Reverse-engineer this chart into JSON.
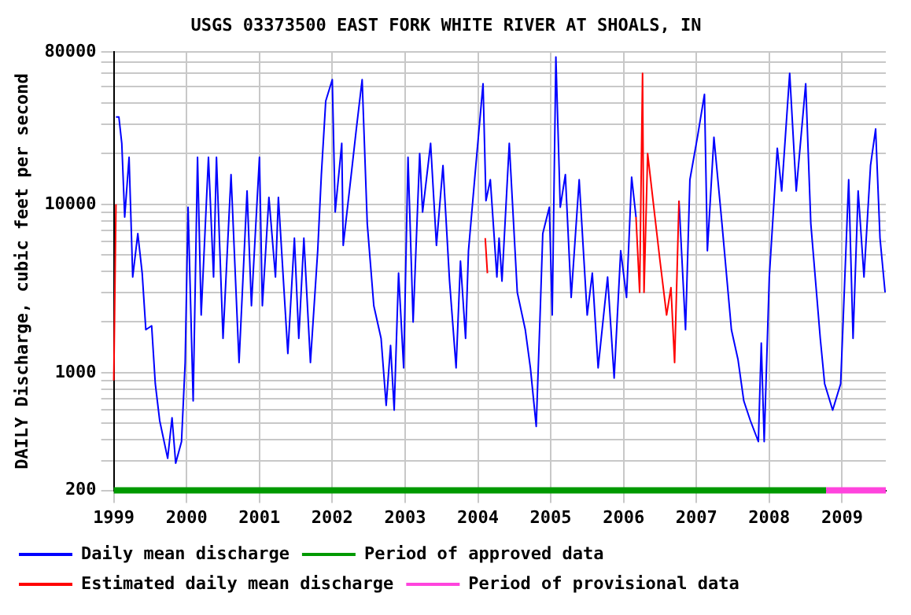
{
  "chart_data": {
    "type": "line",
    "title": "USGS 03373500 EAST FORK WHITE RIVER AT SHOALS, IN",
    "ylabel": "DAILY Discharge, cubic feet per second",
    "log": "y",
    "grid": true,
    "legend": "bottom",
    "line_style": "solid",
    "marker": "none",
    "xlim": [
      1999,
      2009.6
    ],
    "xticks": [
      1999,
      2000,
      2001,
      2002,
      2003,
      2004,
      2005,
      2006,
      2007,
      2008,
      2009
    ],
    "ylim": [
      200,
      80000
    ],
    "yticks": [
      200,
      {
        "value": 300,
        "label": null
      },
      {
        "value": 400,
        "label": null
      },
      {
        "value": 500,
        "label": null
      },
      {
        "value": 600,
        "label": null
      },
      {
        "value": 700,
        "label": null
      },
      {
        "value": 800,
        "label": null
      },
      {
        "value": 900,
        "label": null
      },
      1000,
      {
        "value": 2000,
        "label": null
      },
      {
        "value": 3000,
        "label": null
      },
      {
        "value": 4000,
        "label": null
      },
      {
        "value": 5000,
        "label": null
      },
      {
        "value": 6000,
        "label": null
      },
      {
        "value": 7000,
        "label": null
      },
      {
        "value": 8000,
        "label": null
      },
      {
        "value": 9000,
        "label": null
      },
      10000,
      {
        "value": 20000,
        "label": null
      },
      {
        "value": 30000,
        "label": null
      },
      {
        "value": 40000,
        "label": null
      },
      {
        "value": 50000,
        "label": null
      },
      {
        "value": 60000,
        "label": null
      },
      {
        "value": 70000,
        "label": null
      },
      80000
    ],
    "series": [
      {
        "name": "Daily mean discharge",
        "color": "#0000ff",
        "x": [
          1999.03,
          1999.07,
          1999.11,
          1999.15,
          1999.21,
          1999.26,
          1999.33,
          1999.39,
          1999.44,
          1999.52,
          1999.57,
          1999.63,
          1999.74,
          1999.8,
          1999.85,
          1999.93,
          1999.98,
          2000.02,
          2000.09,
          2000.15,
          2000.2,
          2000.3,
          2000.37,
          2000.41,
          2000.5,
          2000.61,
          2000.72,
          2000.83,
          2000.89,
          2001.0,
          2001.04,
          2001.13,
          2001.22,
          2001.26,
          2001.39,
          2001.48,
          2001.54,
          2001.61,
          2001.7,
          2001.8,
          2001.85,
          2001.91,
          2002.0,
          2002.04,
          2002.13,
          2002.15,
          2002.26,
          2002.33,
          2002.41,
          2002.48,
          2002.57,
          2002.67,
          2002.74,
          2002.8,
          2002.85,
          2002.91,
          2002.98,
          2003.04,
          2003.11,
          2003.2,
          2003.24,
          2003.35,
          2003.43,
          2003.52,
          2003.61,
          2003.7,
          2003.76,
          2003.83,
          2003.87,
          2003.96,
          2004.07,
          2004.11,
          2004.17,
          2004.26,
          2004.29,
          2004.33,
          2004.43,
          2004.54,
          2004.65,
          2004.72,
          2004.8,
          2004.85,
          2004.89,
          2004.98,
          2005.02,
          2005.07,
          2005.13,
          2005.2,
          2005.28,
          2005.39,
          2005.5,
          2005.57,
          2005.65,
          2005.78,
          2005.87,
          2005.96,
          2006.04,
          2006.11,
          2006.17,
          2006.5,
          2006.76,
          2006.85,
          2006.91,
          2007.02,
          2007.11,
          2007.15,
          2007.24,
          2007.35,
          2007.48,
          2007.57,
          2007.65,
          2007.74,
          2007.85,
          2007.89,
          2007.93,
          2008.0,
          2008.11,
          2008.17,
          2008.28,
          2008.37,
          2008.5,
          2008.57,
          2008.7,
          2008.76,
          2008.87,
          2008.98,
          2009.09,
          2009.15,
          2009.22,
          2009.3,
          2009.39,
          2009.46,
          2009.52,
          2009.59
        ],
        "values": [
          33000,
          33000,
          23000,
          8400,
          19000,
          3700,
          6700,
          3900,
          1800,
          1900,
          860,
          520,
          310,
          540,
          290,
          390,
          1150,
          9600,
          680,
          19000,
          2200,
          19000,
          3700,
          19000,
          1600,
          15000,
          1150,
          12000,
          2500,
          19000,
          2500,
          11000,
          3700,
          11000,
          1300,
          6300,
          1600,
          6300,
          1150,
          5300,
          15000,
          41000,
          55000,
          9000,
          23000,
          5700,
          15000,
          28000,
          55000,
          7700,
          2500,
          1600,
          640,
          1450,
          600,
          3900,
          1070,
          19000,
          2000,
          20000,
          9000,
          23000,
          5700,
          17000,
          3500,
          1070,
          4600,
          1600,
          5300,
          15000,
          52000,
          10500,
          14000,
          3700,
          6300,
          3500,
          23000,
          3000,
          1800,
          1070,
          480,
          2000,
          6700,
          9600,
          2200,
          75000,
          9600,
          15000,
          2800,
          14000,
          2200,
          3900,
          1070,
          3700,
          930,
          5300,
          2800,
          14500,
          8400,
          null,
          10500,
          1800,
          14000,
          26000,
          45000,
          5300,
          25000,
          7700,
          1800,
          1200,
          680,
          520,
          390,
          1500,
          390,
          3700,
          21500,
          12000,
          60000,
          12000,
          52000,
          7700,
          1600,
          860,
          600,
          860,
          14000,
          1600,
          12000,
          3700,
          17000,
          28000,
          6300,
          3000
        ]
      },
      {
        "name": "Estimated daily mean discharge",
        "color": "#ff0000",
        "x": [
          1999.0,
          1999.03,
          null,
          2004.1,
          2004.13,
          null,
          2006.17,
          2006.22,
          2006.26,
          2006.28,
          2006.33,
          2006.43,
          2006.5,
          2006.59,
          2006.65,
          2006.7,
          2006.76
        ],
        "values": [
          900,
          10000,
          null,
          6300,
          3900,
          null,
          8400,
          3000,
          60000,
          3000,
          20000,
          8400,
          4600,
          2200,
          3200,
          1150,
          10500
        ]
      },
      {
        "name": "Period of approved data",
        "color": "#009900",
        "x": [
          1999,
          2008.78
        ],
        "values": [
          200,
          200
        ]
      },
      {
        "name": "Period of provisional data",
        "color": "#ff44dd",
        "x": [
          2008.78,
          2009.6
        ],
        "values": [
          200,
          200
        ]
      }
    ]
  }
}
